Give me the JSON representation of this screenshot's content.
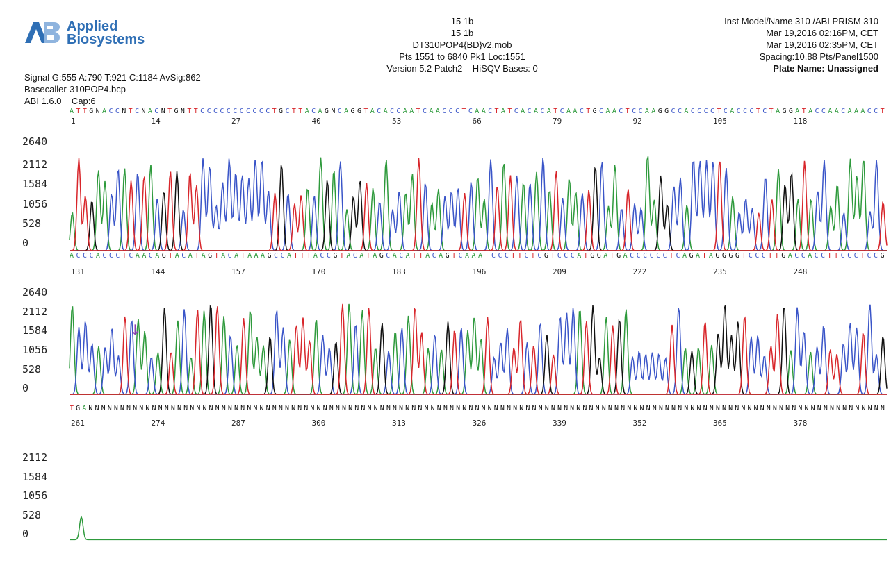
{
  "header": {
    "brand_line1": "Applied",
    "brand_line2": "Biosystems",
    "left": [
      "Signal G:555 A:790 T:921 C:1184 AvSig:862",
      "Basecaller-310POP4.bcp",
      "ABI 1.6.0    Cap:6"
    ],
    "center": [
      "15 1b",
      "15 1b",
      "DT310POP4{BD}v2.mob",
      "Pts 1551 to 6840 Pk1 Loc:1551",
      "Version 5.2 Patch2    HiSQV Bases: 0"
    ],
    "right": [
      "Inst Model/Name 310 /ABI PRISM 310",
      "Mar 19,2016 02:16PM, CET",
      "Mar 19,2016 02:35PM, CET",
      "Spacing:10.88  Pts/Panel1500",
      "Plate Name: Unassigned"
    ]
  },
  "colors": {
    "A": "#2e9a3c",
    "C": "#3a55c8",
    "G": "#111111",
    "T": "#d8262b",
    "baseline": "#d8262b",
    "panel3": "#2e9a3c"
  },
  "chart_data": [
    {
      "type": "line",
      "panel": 1,
      "sequence": "ATTGNACCNTCNACNTGNTTCCCCCCCCCCCTGCTTACAGNCAGGTACACCAATCAACCCTCAACTATCACACATCAACTGCAACTCCAAGGCCACCCCTCACCCTCTAGGATACCAACAAACCT",
      "base_indices": [
        "1",
        "14",
        "27",
        "40",
        "53",
        "66",
        "79",
        "92",
        "105",
        "118"
      ],
      "y_ticks": [
        "2640",
        "2112",
        "1584",
        "1056",
        "528",
        "0"
      ],
      "ylim": [
        0,
        2900
      ],
      "points_range": [
        0,
        1500
      ]
    },
    {
      "type": "line",
      "panel": 2,
      "sequence": "ACCCACCCTCAACAGTACATAGTACATAAAGCCATTTACCGTACATAGCACATTACAGTCAAATCCCTTCTCGTCCCATGGATGACCCCCCTCAGATAGGGGTCCCTTGACCACCTTCCCTCCG",
      "base_indices": [
        "131",
        "144",
        "157",
        "170",
        "183",
        "196",
        "209",
        "222",
        "235",
        "248"
      ],
      "y_ticks": [
        "2640",
        "2112",
        "1584",
        "1056",
        "528",
        "0"
      ],
      "ylim": [
        0,
        2900
      ],
      "marker_label": "↓"
    },
    {
      "type": "line",
      "panel": 3,
      "sequence": "TGANNNNNNNNNNNNNNNNNNNNNNNNNNNNNNNNNNNNNNNNNNNNNNNNNNNNNNNNNNNNNNNNNNNNNNNNNNNNNNNNNNNNNNNNNNNNNNNNNNNNNNNNNNNNNNNNNNNNNNNNNNNNNN",
      "base_indices": [
        "261",
        "274",
        "287",
        "300",
        "313",
        "326",
        "339",
        "352",
        "365",
        "378"
      ],
      "y_ticks": [
        "2112",
        "1584",
        "1056",
        "528",
        "0"
      ],
      "ylim": [
        0,
        2400
      ],
      "series": [
        {
          "channel": "A",
          "peak_value": 580,
          "flat_value": 10
        }
      ]
    }
  ]
}
